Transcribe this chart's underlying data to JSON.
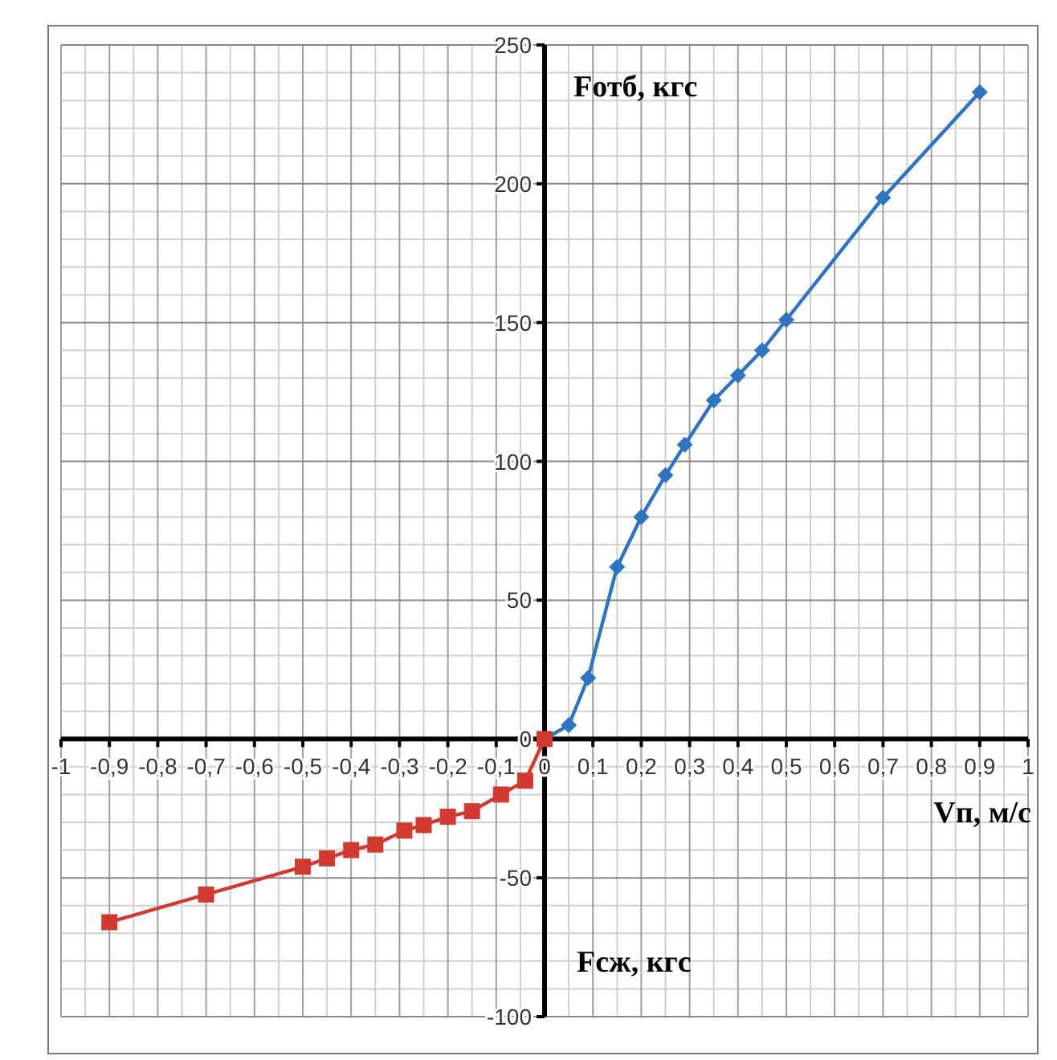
{
  "chart_data": {
    "type": "line",
    "xlabel": "Vп, м/с",
    "ylabel": "Fотб, кгс",
    "annotations": [
      "Fсж, кгс"
    ],
    "xlim": [
      -1,
      1
    ],
    "ylim": [
      -100,
      250
    ],
    "xticks": [
      -1,
      {
        "value": -0.9,
        "label": "-0,9"
      },
      {
        "value": -0.8,
        "label": "-0,8"
      },
      {
        "value": -0.7,
        "label": "-0,7"
      },
      {
        "value": -0.6,
        "label": "-0,6"
      },
      {
        "value": -0.5,
        "label": "-0,5"
      },
      {
        "value": -0.4,
        "label": "-0,4"
      },
      {
        "value": -0.3,
        "label": "-0,3"
      },
      {
        "value": -0.2,
        "label": "-0,2"
      },
      {
        "value": -0.1,
        "label": "-0,1"
      },
      0,
      {
        "value": 0.1,
        "label": "0,1"
      },
      {
        "value": 0.2,
        "label": "0,2"
      },
      {
        "value": 0.3,
        "label": "0,3"
      },
      {
        "value": 0.4,
        "label": "0,4"
      },
      {
        "value": 0.5,
        "label": "0,5"
      },
      {
        "value": 0.6,
        "label": "0,6"
      },
      {
        "value": 0.7,
        "label": "0,7"
      },
      {
        "value": 0.8,
        "label": "0,8"
      },
      {
        "value": 0.9,
        "label": "0,9"
      },
      1
    ],
    "yticks": [
      -100,
      -50,
      0,
      50,
      100,
      150,
      200,
      250
    ],
    "grid": true,
    "line_style": "solid",
    "series": [
      {
        "color": "#2f74c0",
        "marker": "diamond",
        "x": [
          0,
          0.05,
          0.09,
          0.15,
          0.2,
          0.25,
          0.29,
          0.35,
          0.4,
          0.45,
          0.5,
          0.7,
          0.9
        ],
        "values": [
          0,
          5,
          22,
          62,
          80,
          95,
          106,
          122,
          131,
          140,
          151,
          195,
          233
        ]
      },
      {
        "color": "#d03a30",
        "marker": "square",
        "x": [
          0,
          -0.04,
          -0.09,
          -0.15,
          -0.2,
          -0.25,
          -0.29,
          -0.35,
          -0.4,
          -0.45,
          -0.5,
          -0.7,
          -0.9
        ],
        "values": [
          0,
          -15,
          -20,
          -26,
          -28,
          -31,
          -33,
          -38,
          -40,
          -43,
          -46,
          -56,
          -66
        ]
      }
    ]
  }
}
